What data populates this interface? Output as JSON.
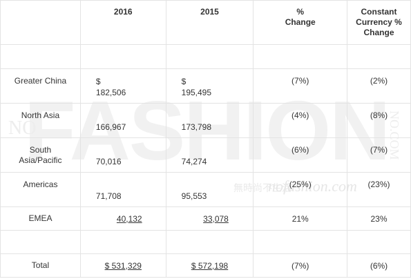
{
  "watermark": {
    "main": "FASHION",
    "left": "NO",
    "right": "NO.COM",
    "cn": "無時尚不生活",
    "url": "nofashion.com"
  },
  "table": {
    "headers": [
      "2016",
      "2015",
      "% Change",
      "Constant Currency % Change"
    ],
    "rows": [
      {
        "label": "Greater China",
        "c2016_sym": "$",
        "c2016": "182,506",
        "c2015_sym": "$",
        "c2015": "195,495",
        "pct": "(7%)",
        "cc": "(2%)"
      },
      {
        "label": "North Asia",
        "c2016": "166,967",
        "c2015": "173,798",
        "pct": "(4%)",
        "cc": "(8%)"
      },
      {
        "label": "South Asia/Pacific",
        "c2016": "70,016",
        "c2015": "74,274",
        "pct": "(6%)",
        "cc": "(7%)"
      },
      {
        "label": "Americas",
        "c2016": "71,708",
        "c2015": "95,553",
        "pct": "(25%)",
        "cc": "(23%)"
      },
      {
        "label": "EMEA",
        "c2016": "40,132",
        "c2015": "33,078",
        "pct": "21%",
        "cc": "23%"
      },
      {
        "label": "Total",
        "c2016": "$ 531,329",
        "c2015": "$ 572,198",
        "pct": "(7%)",
        "cc": "(6%)"
      }
    ]
  }
}
